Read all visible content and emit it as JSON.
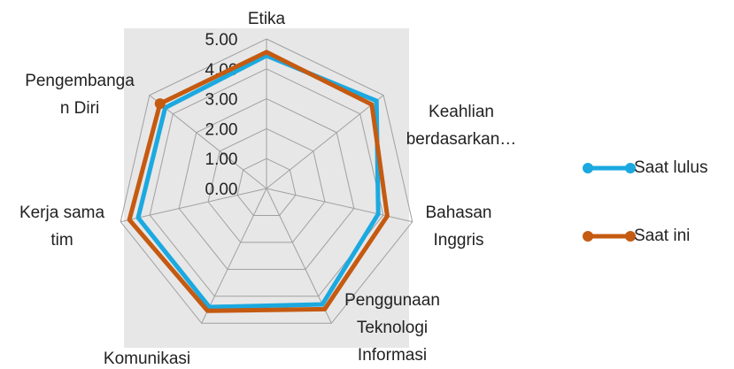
{
  "chart_data": {
    "type": "radar",
    "categories": [
      [
        "Etika"
      ],
      [
        "Keahlian",
        "berdasarkan…"
      ],
      [
        "Bahasan",
        "Inggris"
      ],
      [
        "Penggunaan",
        "Teknologi",
        "Informasi"
      ],
      [
        "Komunikasi"
      ],
      [
        "Kerja sama",
        "tim"
      ],
      [
        "Pengembanga",
        "n Diri"
      ]
    ],
    "series": [
      {
        "name": "Saat lulus",
        "color": "#1ba9e0",
        "values": [
          4.44,
          4.7,
          3.83,
          4.3,
          4.4,
          4.4,
          4.33
        ]
      },
      {
        "name": "Saat ini",
        "color": "#c55a11",
        "values": [
          4.56,
          4.5,
          4.14,
          4.48,
          4.54,
          4.7,
          4.55
        ]
      }
    ],
    "ylim": [
      0,
      5
    ],
    "yticks": [
      {
        "value": 0,
        "label": "0.00"
      },
      {
        "value": 1,
        "label": "1.00"
      },
      {
        "value": 2,
        "label": "2.00"
      },
      {
        "value": 3,
        "label": "3.00"
      },
      {
        "value": 4,
        "label": "4.00"
      },
      {
        "value": 5,
        "label": "5.00"
      }
    ],
    "grid": true,
    "legend": "right"
  }
}
